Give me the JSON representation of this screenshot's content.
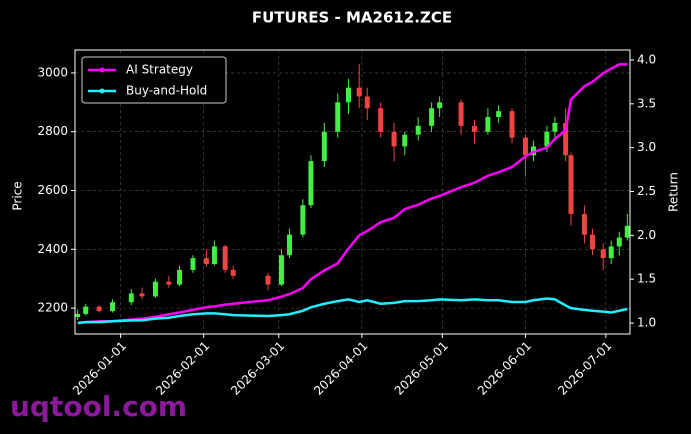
{
  "chart_data": {
    "type": "candlestick",
    "title": "FUTURES - MA2612.ZCE",
    "ylabel": "Price",
    "y2label": "Return",
    "watermark": "uqtool.com",
    "x": [
      "2025-12-16",
      "2025-12-19",
      "2025-12-24",
      "2025-12-29",
      "2026-01-05",
      "2026-01-09",
      "2026-01-14",
      "2026-01-19",
      "2026-01-23",
      "2026-01-28",
      "2026-02-02",
      "2026-02-05",
      "2026-02-09",
      "2026-02-12",
      "2026-02-25",
      "2026-03-02",
      "2026-03-05",
      "2026-03-10",
      "2026-03-13",
      "2026-03-18",
      "2026-03-23",
      "2026-03-27",
      "2026-03-31",
      "2026-04-03",
      "2026-04-08",
      "2026-04-13",
      "2026-04-17",
      "2026-04-22",
      "2026-04-27",
      "2026-04-30",
      "2026-05-08",
      "2026-05-13",
      "2026-05-18",
      "2026-05-22",
      "2026-05-27",
      "2026-06-01",
      "2026-06-04",
      "2026-06-09",
      "2026-06-12",
      "2026-06-16",
      "2026-06-18",
      "2026-06-23",
      "2026-06-26",
      "2026-06-30",
      "2026-07-03",
      "2026-07-06",
      "2026-07-09"
    ],
    "open": [
      2170,
      2180,
      2205,
      2190,
      2220,
      2250,
      2240,
      2290,
      2280,
      2330,
      2370,
      2350,
      2410,
      2330,
      2310,
      2280,
      2380,
      2450,
      2550,
      2700,
      2800,
      2900,
      2950,
      2920,
      2880,
      2800,
      2750,
      2790,
      2820,
      2880,
      2900,
      2820,
      2800,
      2850,
      2870,
      2780,
      2720,
      2750,
      2800,
      2830,
      2720,
      2520,
      2450,
      2400,
      2370,
      2410,
      2440
    ],
    "high": [
      2195,
      2215,
      2210,
      2230,
      2265,
      2270,
      2300,
      2310,
      2345,
      2380,
      2400,
      2430,
      2415,
      2345,
      2320,
      2400,
      2470,
      2570,
      2720,
      2830,
      2930,
      2980,
      3030,
      2950,
      2900,
      2830,
      2800,
      2850,
      2900,
      2920,
      2910,
      2840,
      2880,
      2890,
      2880,
      2790,
      2770,
      2820,
      2850,
      2880,
      2730,
      2550,
      2470,
      2420,
      2430,
      2460,
      2520
    ],
    "low": [
      2160,
      2175,
      2185,
      2185,
      2210,
      2230,
      2235,
      2270,
      2275,
      2320,
      2340,
      2345,
      2320,
      2300,
      2260,
      2275,
      2370,
      2440,
      2540,
      2680,
      2780,
      2860,
      2880,
      2840,
      2780,
      2700,
      2720,
      2770,
      2800,
      2850,
      2790,
      2760,
      2790,
      2830,
      2760,
      2650,
      2700,
      2730,
      2780,
      2700,
      2480,
      2420,
      2380,
      2330,
      2350,
      2380,
      2430
    ],
    "close": [
      2180,
      2205,
      2190,
      2220,
      2250,
      2240,
      2290,
      2280,
      2330,
      2370,
      2350,
      2410,
      2330,
      2310,
      2280,
      2380,
      2450,
      2550,
      2700,
      2800,
      2900,
      2950,
      2920,
      2880,
      2800,
      2750,
      2790,
      2820,
      2880,
      2900,
      2820,
      2800,
      2850,
      2870,
      2780,
      2720,
      2750,
      2800,
      2830,
      2720,
      2520,
      2450,
      2400,
      2370,
      2410,
      2440,
      2480
    ],
    "up_color": "#44ee44",
    "down_color": "#ee4444",
    "series": [
      {
        "name": "AI Strategy",
        "color": "#ff00ff",
        "axis": "y2",
        "values": [
          1.0,
          1.01,
          1.02,
          1.02,
          1.04,
          1.05,
          1.07,
          1.1,
          1.12,
          1.15,
          1.18,
          1.19,
          1.21,
          1.22,
          1.26,
          1.3,
          1.33,
          1.4,
          1.5,
          1.6,
          1.68,
          1.85,
          2.0,
          2.05,
          2.15,
          2.2,
          2.3,
          2.35,
          2.42,
          2.45,
          2.55,
          2.6,
          2.68,
          2.72,
          2.78,
          2.9,
          2.95,
          3.0,
          3.1,
          3.2,
          3.55,
          3.7,
          3.75,
          3.85,
          3.9,
          3.95,
          3.95
        ]
      },
      {
        "name": "Buy-and-Hold",
        "color": "#22eeff",
        "axis": "y2",
        "values": [
          1.0,
          1.01,
          1.01,
          1.02,
          1.03,
          1.03,
          1.05,
          1.06,
          1.08,
          1.1,
          1.11,
          1.11,
          1.1,
          1.09,
          1.08,
          1.09,
          1.1,
          1.14,
          1.18,
          1.22,
          1.25,
          1.27,
          1.24,
          1.26,
          1.22,
          1.23,
          1.25,
          1.25,
          1.26,
          1.27,
          1.26,
          1.27,
          1.26,
          1.26,
          1.24,
          1.24,
          1.26,
          1.28,
          1.27,
          1.2,
          1.17,
          1.15,
          1.14,
          1.13,
          1.12,
          1.14,
          1.16
        ]
      }
    ],
    "xlim": [
      "2025-12-15",
      "2026-07-10"
    ],
    "xticks": [
      "2026-01-01",
      "2026-02-01",
      "2026-03-01",
      "2026-04-01",
      "2026-05-01",
      "2026-06-01",
      "2026-07-01"
    ],
    "ylim": [
      2112,
      3078
    ],
    "yticks": [
      2200,
      2400,
      2600,
      2800,
      3000
    ],
    "y2lim": [
      0.875,
      4.114
    ],
    "y2ticks": [
      {
        "value": 1,
        "label": "1.0"
      },
      {
        "value": 1.5,
        "label": "1.5"
      },
      {
        "value": 2,
        "label": "2.0"
      },
      {
        "value": 2.5,
        "label": "2.5"
      },
      {
        "value": 3,
        "label": "3.0"
      },
      {
        "value": 3.5,
        "label": "3.5"
      },
      {
        "value": 4,
        "label": "4.0"
      }
    ],
    "grid": true,
    "legend": "upper left"
  }
}
